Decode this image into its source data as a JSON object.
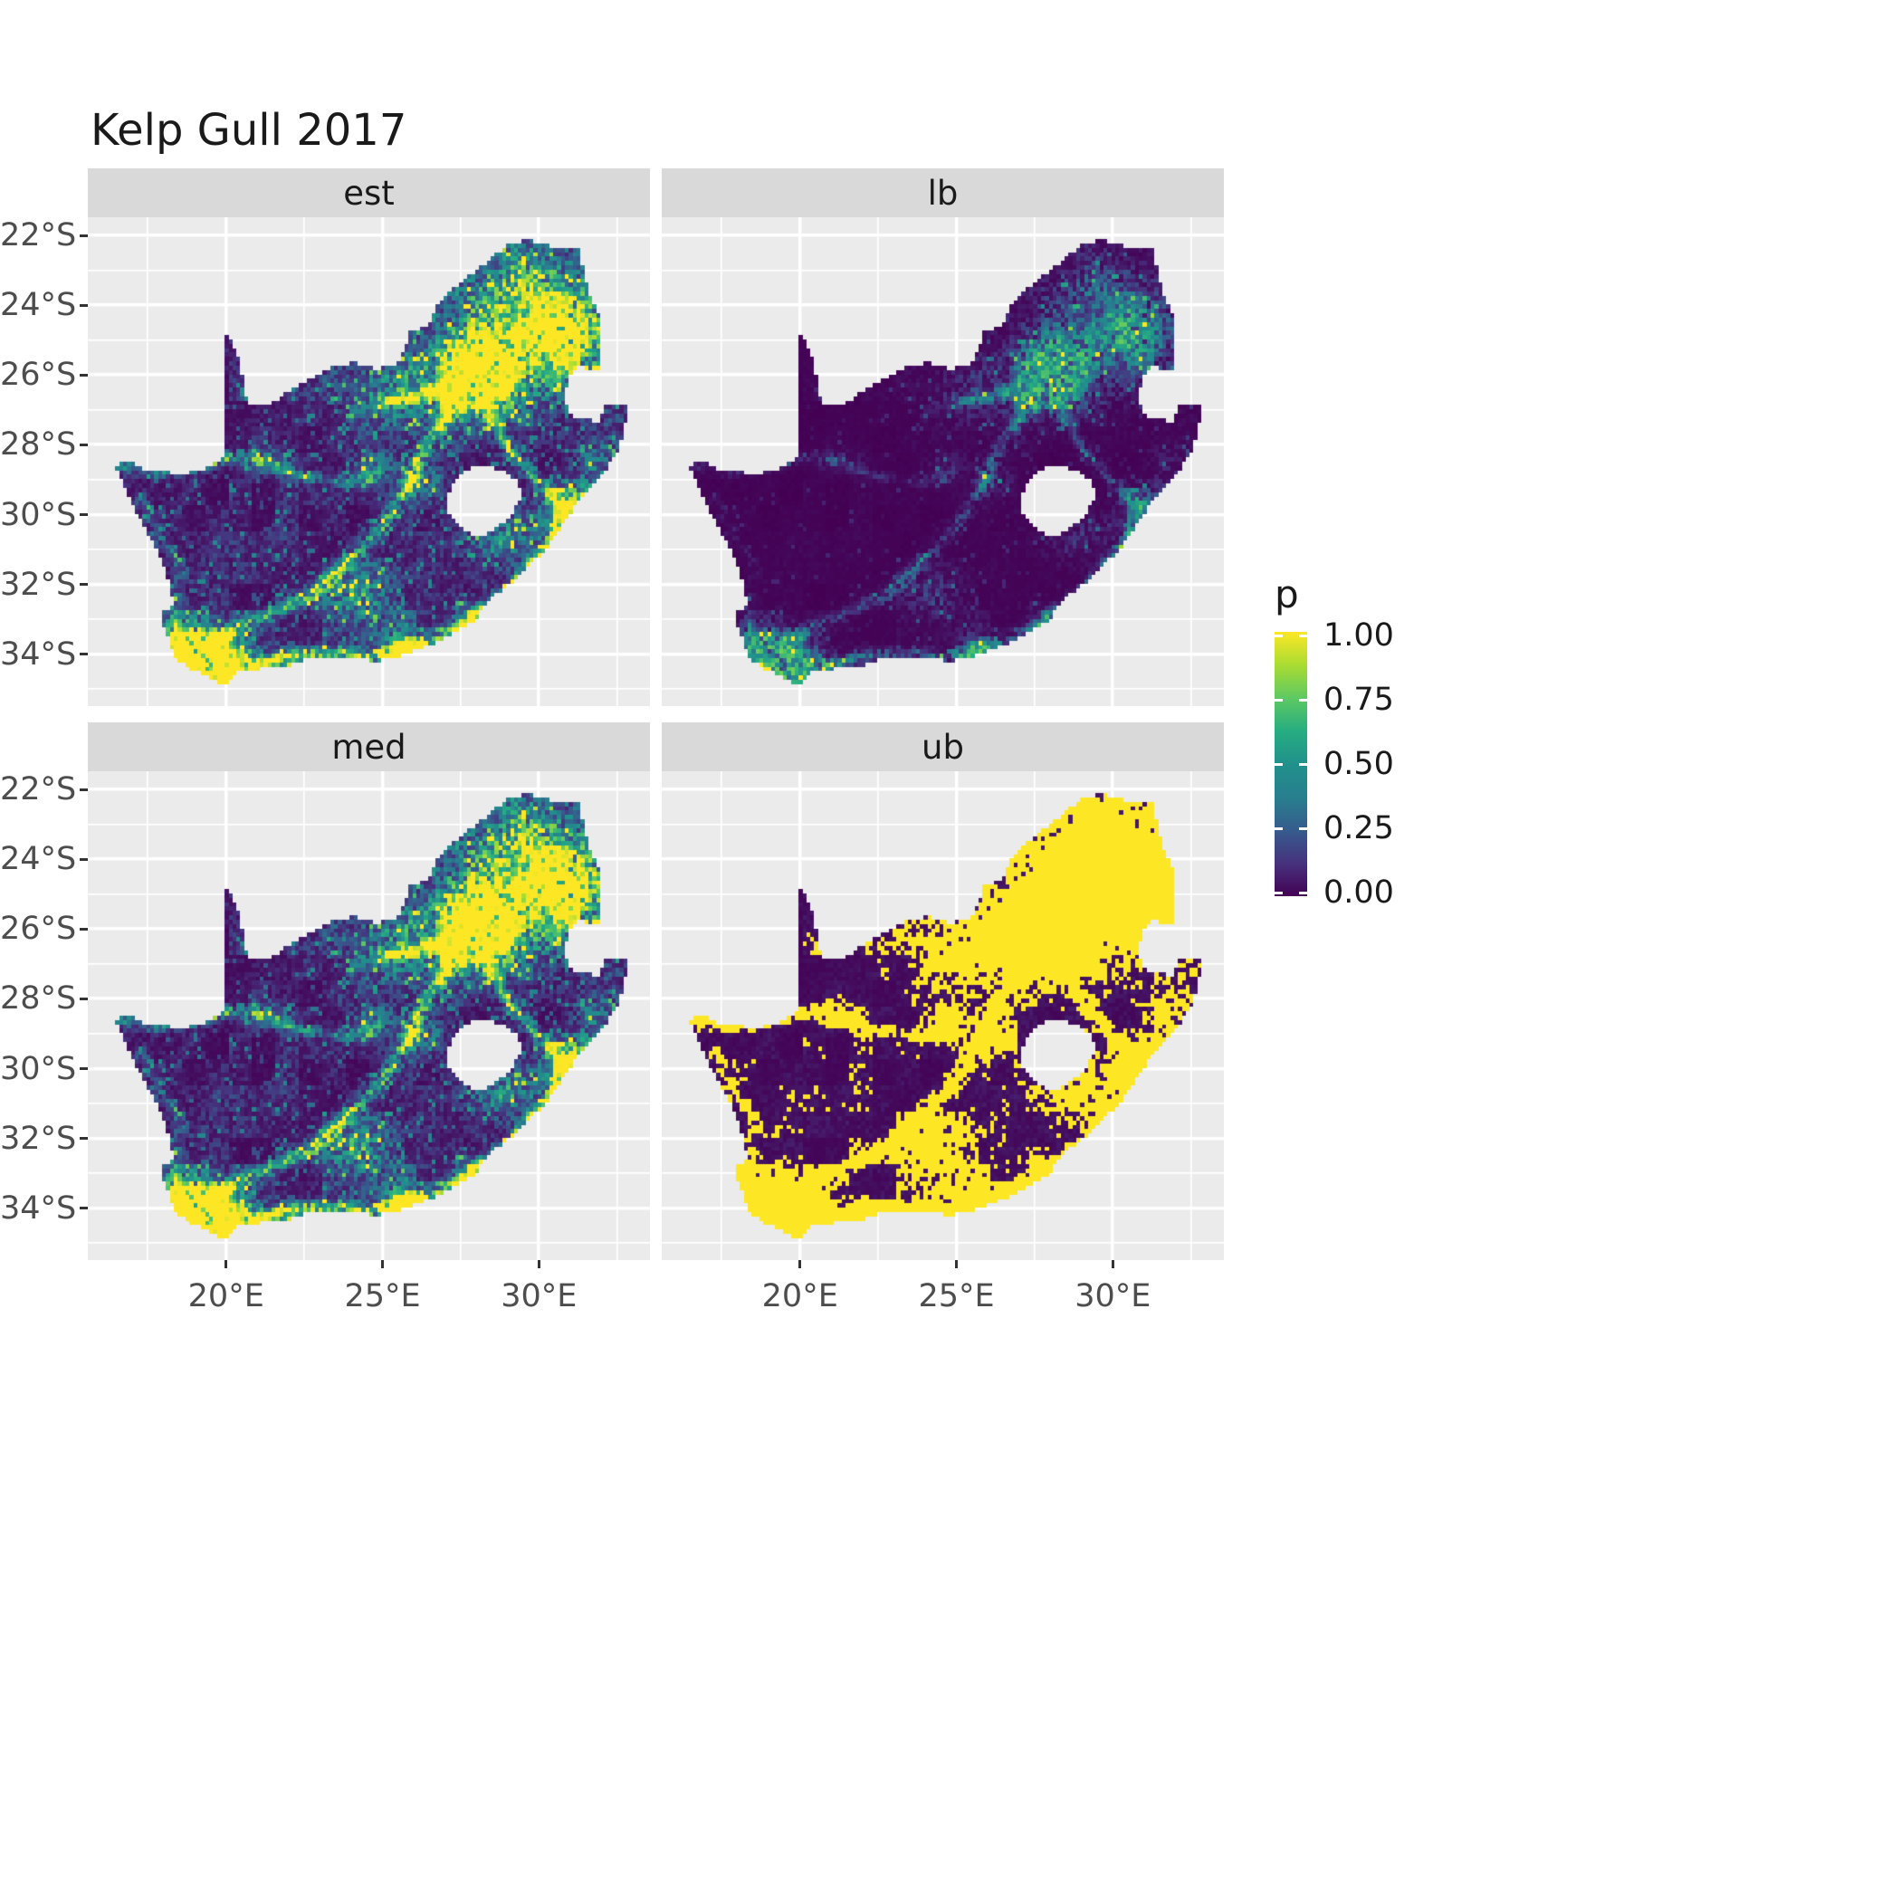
{
  "title": "Kelp Gull 2017",
  "facets": [
    {
      "id": "est",
      "label": "est"
    },
    {
      "id": "lb",
      "label": "lb"
    },
    {
      "id": "med",
      "label": "med"
    },
    {
      "id": "ub",
      "label": "ub"
    }
  ],
  "axes": {
    "x": {
      "tick_labels": [
        "20°E",
        "25°E",
        "30°E"
      ],
      "tick_values": [
        20,
        25,
        30
      ]
    },
    "y": {
      "tick_labels": [
        "22°S",
        "24°S",
        "26°S",
        "28°S",
        "30°S",
        "32°S",
        "34°S"
      ],
      "tick_values": [
        -22,
        -24,
        -26,
        -28,
        -30,
        -32,
        -34
      ]
    }
  },
  "legend": {
    "title": "p",
    "tick_labels": [
      "1.00",
      "0.75",
      "0.50",
      "0.25",
      "0.00"
    ],
    "tick_values": [
      1,
      0.75,
      0.5,
      0.25,
      0
    ],
    "viridis_stops": [
      [
        0,
        "#440154"
      ],
      [
        0.125,
        "#46327e"
      ],
      [
        0.25,
        "#365c8d"
      ],
      [
        0.375,
        "#277f8e"
      ],
      [
        0.5,
        "#21918c"
      ],
      [
        0.625,
        "#27ad81"
      ],
      [
        0.75,
        "#5ec962"
      ],
      [
        0.875,
        "#aadc32"
      ],
      [
        1,
        "#fde725"
      ]
    ]
  },
  "theme": {
    "panel_bg": "#ebebeb",
    "strip_bg": "#d9d9d9",
    "grid_color": "#ffffff",
    "axis_text_color": "#4d4d4d",
    "text_color": "#1a1a1a",
    "tick_color": "#333333"
  },
  "chart_data": {
    "type": "heatmap",
    "subtype": "faceted raster probability map",
    "title": "Kelp Gull 2017",
    "region": "South Africa",
    "variable": "p",
    "value_range": [
      0,
      1
    ],
    "grid": true,
    "legend_position": "right",
    "facets": [
      "est",
      "lb",
      "med",
      "ub"
    ],
    "facet_summary": {
      "est": "mostly p≈0 (dark purple) with mid-value speckle along routes, high p≈1 cluster in the north-east interior and south-west coast",
      "lb": "near-zero everywhere, sparse faint teal speckle concentrated in the north-east",
      "med": "similar to est: dark background, green/teal route speckle, strong yellow north-east cluster",
      "ub": "binary-looking: widespread p≈1 yellow patches, dense solid yellow in the north-east and along the coasts"
    },
    "x_axis": {
      "range": [
        15.58,
        33.55
      ],
      "ticks": [
        20,
        25,
        30
      ],
      "tick_labels": [
        "20°E",
        "25°E",
        "30°E"
      ],
      "minor": [
        17.5,
        22.5,
        27.5,
        32.5
      ]
    },
    "y_axis": {
      "range": [
        -35.48,
        -21.48
      ],
      "ticks": [
        -22,
        -24,
        -26,
        -28,
        -30,
        -32,
        -34
      ],
      "tick_labels": [
        "22°S",
        "24°S",
        "26°S",
        "28°S",
        "30°S",
        "32°S",
        "34°S"
      ],
      "minor": [
        -23,
        -25,
        -27,
        -29,
        -31,
        -33,
        -35
      ]
    },
    "map": {
      "cell_deg": 0.125,
      "outline": [
        [
          16.45,
          -28.6
        ],
        [
          16.95,
          -28.43
        ],
        [
          17.35,
          -28.72
        ],
        [
          17.95,
          -28.76
        ],
        [
          18.6,
          -28.85
        ],
        [
          19.25,
          -28.7
        ],
        [
          19.7,
          -28.5
        ],
        [
          19.99,
          -28.3
        ],
        [
          19.99,
          -24.76
        ],
        [
          20.35,
          -25.35
        ],
        [
          20.55,
          -26.1
        ],
        [
          20.7,
          -26.88
        ],
        [
          21.4,
          -26.82
        ],
        [
          22.1,
          -26.4
        ],
        [
          22.85,
          -26.0
        ],
        [
          23.6,
          -25.7
        ],
        [
          24.2,
          -25.65
        ],
        [
          24.75,
          -25.82
        ],
        [
          25.35,
          -25.72
        ],
        [
          25.6,
          -25.48
        ],
        [
          25.9,
          -24.74
        ],
        [
          26.4,
          -24.63
        ],
        [
          26.85,
          -23.85
        ],
        [
          27.45,
          -23.4
        ],
        [
          28.05,
          -22.95
        ],
        [
          28.7,
          -22.5
        ],
        [
          29.1,
          -22.2
        ],
        [
          29.7,
          -22.14
        ],
        [
          30.4,
          -22.3
        ],
        [
          31.3,
          -22.4
        ],
        [
          31.55,
          -23.5
        ],
        [
          31.9,
          -24.3
        ],
        [
          32.02,
          -25.1
        ],
        [
          31.97,
          -25.9
        ],
        [
          31.3,
          -25.75
        ],
        [
          30.95,
          -26.1
        ],
        [
          30.8,
          -26.8
        ],
        [
          31.15,
          -27.2
        ],
        [
          31.95,
          -27.32
        ],
        [
          32.1,
          -26.85
        ],
        [
          32.9,
          -26.86
        ],
        [
          32.55,
          -28.2
        ],
        [
          32.0,
          -28.85
        ],
        [
          31.05,
          -29.88
        ],
        [
          30.25,
          -30.95
        ],
        [
          29.35,
          -31.8
        ],
        [
          28.55,
          -32.35
        ],
        [
          27.9,
          -33.05
        ],
        [
          27.0,
          -33.52
        ],
        [
          26.4,
          -33.78
        ],
        [
          25.65,
          -34.03
        ],
        [
          24.85,
          -34.2
        ],
        [
          23.95,
          -34.1
        ],
        [
          23.35,
          -34.05
        ],
        [
          22.55,
          -34.15
        ],
        [
          21.7,
          -34.4
        ],
        [
          20.95,
          -34.42
        ],
        [
          20.45,
          -34.5
        ],
        [
          20.0,
          -34.83
        ],
        [
          19.6,
          -34.78
        ],
        [
          19.3,
          -34.6
        ],
        [
          18.8,
          -34.38
        ],
        [
          18.45,
          -34.18
        ],
        [
          18.32,
          -33.92
        ],
        [
          18.1,
          -33.4
        ],
        [
          17.88,
          -32.8
        ],
        [
          18.3,
          -32.62
        ],
        [
          18.22,
          -32.05
        ],
        [
          18.0,
          -31.4
        ],
        [
          17.6,
          -30.7
        ],
        [
          17.1,
          -29.85
        ],
        [
          16.75,
          -29.25
        ]
      ],
      "lesotho_hole": [
        [
          27.02,
          -29.58
        ],
        [
          27.3,
          -28.98
        ],
        [
          27.78,
          -28.68
        ],
        [
          28.38,
          -28.6
        ],
        [
          28.98,
          -28.78
        ],
        [
          29.38,
          -29.12
        ],
        [
          29.45,
          -29.48
        ],
        [
          29.12,
          -29.98
        ],
        [
          28.62,
          -30.42
        ],
        [
          28.08,
          -30.65
        ],
        [
          27.68,
          -30.5
        ],
        [
          27.32,
          -30.12
        ],
        [
          27.05,
          -29.92
        ]
      ],
      "hotspots": [
        [
          28.1,
          -26.1,
          0.85,
          0.75,
          1.2
        ],
        [
          29.4,
          -24.2,
          1.9,
          1.5,
          0.7
        ],
        [
          31.0,
          -25.0,
          0.9,
          0.9,
          0.55
        ],
        [
          25.6,
          -26.6,
          1.3,
          1.0,
          0.4
        ],
        [
          18.8,
          -33.9,
          0.75,
          0.65,
          1.0
        ],
        [
          19.8,
          -34.3,
          1.1,
          0.55,
          0.65
        ],
        [
          20.0,
          -34.6,
          0.5,
          0.35,
          0.8
        ],
        [
          25.6,
          -33.9,
          0.55,
          0.45,
          0.7
        ],
        [
          27.9,
          -33.0,
          0.5,
          0.4,
          0.55
        ],
        [
          30.95,
          -29.85,
          0.55,
          0.5,
          0.75
        ],
        [
          26.2,
          -29.1,
          0.45,
          0.4,
          0.55
        ],
        [
          24.75,
          -28.75,
          0.4,
          0.35,
          0.45
        ],
        [
          24.4,
          -32.3,
          0.85,
          0.7,
          0.45
        ],
        [
          29.0,
          -30.6,
          0.8,
          0.6,
          0.45
        ],
        [
          31.9,
          -28.6,
          0.6,
          0.6,
          0.35
        ],
        [
          21.25,
          -28.45,
          0.5,
          0.3,
          0.35
        ]
      ],
      "corridors": [
        {
          "amp": 0.5,
          "w": 0.16,
          "pts": [
            [
              18.8,
              -33.85
            ],
            [
              20.3,
              -33.3
            ],
            [
              21.6,
              -32.8
            ],
            [
              22.8,
              -32.3
            ],
            [
              23.9,
              -31.4
            ],
            [
              24.9,
              -30.5
            ],
            [
              25.6,
              -29.4
            ],
            [
              26.3,
              -28.2
            ],
            [
              27.1,
              -27.1
            ],
            [
              28.05,
              -26.25
            ]
          ]
        },
        {
          "amp": 0.65,
          "w": 0.16,
          "pts": [
            [
              18.6,
              -34.1
            ],
            [
              19.7,
              -34.45
            ],
            [
              20.8,
              -34.35
            ],
            [
              22.1,
              -34.05
            ],
            [
              23.4,
              -33.95
            ],
            [
              24.6,
              -34.05
            ],
            [
              25.6,
              -33.95
            ],
            [
              26.9,
              -33.55
            ],
            [
              27.9,
              -33.05
            ],
            [
              29.0,
              -32.2
            ],
            [
              30.2,
              -31.0
            ],
            [
              30.95,
              -29.9
            ]
          ]
        },
        {
          "amp": 0.45,
          "w": 0.14,
          "pts": [
            [
              30.95,
              -29.8
            ],
            [
              30.4,
              -29.4
            ],
            [
              29.8,
              -28.9
            ],
            [
              29.3,
              -28.4
            ],
            [
              28.9,
              -27.9
            ],
            [
              28.5,
              -27.3
            ],
            [
              28.2,
              -26.6
            ]
          ]
        },
        {
          "amp": 0.4,
          "w": 0.14,
          "pts": [
            [
              25.0,
              -26.8
            ],
            [
              26.2,
              -26.6
            ],
            [
              27.3,
              -26.4
            ],
            [
              28.1,
              -26.2
            ]
          ]
        },
        {
          "amp": 0.3,
          "w": 0.13,
          "pts": [
            [
              18.45,
              -33.5
            ],
            [
              18.3,
              -32.5
            ],
            [
              18.6,
              -31.6
            ],
            [
              17.9,
              -30.6
            ],
            [
              17.3,
              -29.6
            ]
          ]
        },
        {
          "amp": 0.35,
          "w": 0.12,
          "pts": [
            [
              16.6,
              -28.55
            ],
            [
              17.8,
              -28.75
            ],
            [
              19.0,
              -28.7
            ],
            [
              20.2,
              -28.4
            ],
            [
              21.3,
              -28.5
            ],
            [
              22.3,
              -28.9
            ],
            [
              23.5,
              -29.0
            ],
            [
              24.6,
              -29.1
            ]
          ]
        }
      ]
    }
  }
}
